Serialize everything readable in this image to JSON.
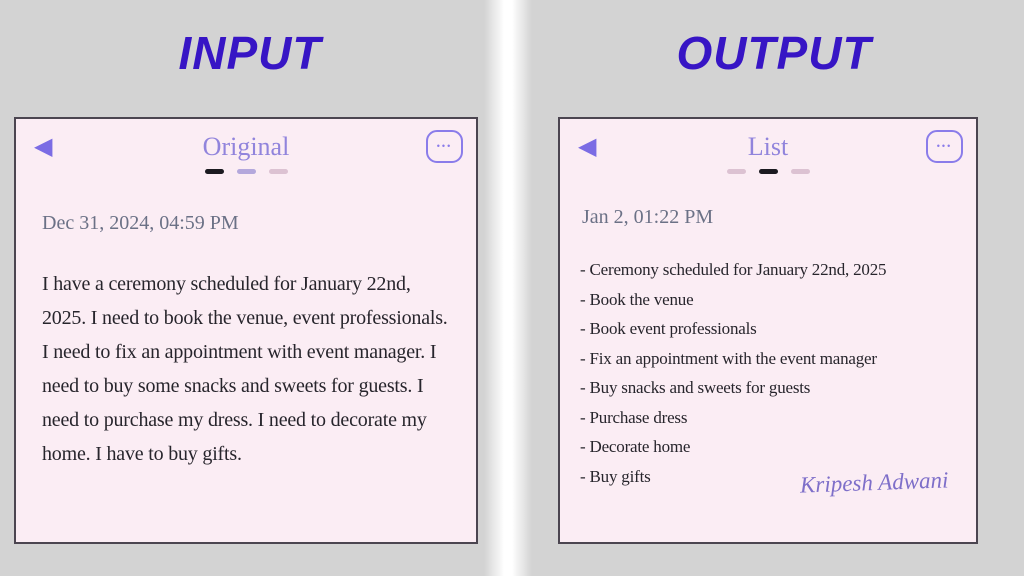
{
  "page": {
    "left_heading": "INPUT",
    "right_heading": "OUTPUT"
  },
  "colors": {
    "heading_blue": "#3715c5",
    "card_background": "#fbedf4",
    "accent_purple": "#8a7cea",
    "title_purple": "#9184dc",
    "date_gray": "#6b7186",
    "note_text": "#27252c",
    "signature_purple": "#7e6fc9",
    "page_background": "#d3d3d3"
  },
  "icons": {
    "back": "◀",
    "menu_dots": "•••"
  },
  "input_card": {
    "title": "Original",
    "date": "Dec 31, 2024, 04:59 PM",
    "body": "I have a ceremony scheduled for January 22nd, 2025. I need to book the venue, event professionals. I need to fix an appointment with event manager. I need to buy some snacks and sweets for guests. I need to purchase my dress. I need to decorate my home. I have to buy gifts."
  },
  "output_card": {
    "title": "List",
    "date": "Jan 2, 01:22 PM",
    "items": [
      "- Ceremony scheduled for January 22nd, 2025",
      "- Book the venue",
      "- Book event professionals",
      "- Fix an appointment with the event manager",
      "- Buy snacks and sweets for guests",
      "- Purchase dress",
      "- Decorate home",
      "- Buy gifts"
    ],
    "signature": "Kripesh Adwani"
  }
}
